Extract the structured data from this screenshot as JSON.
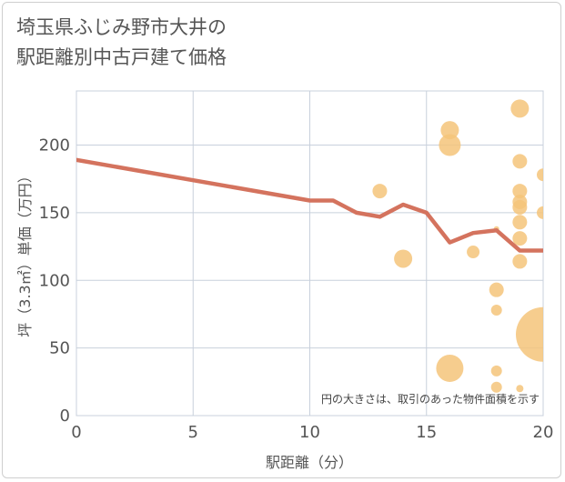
{
  "title_lines": [
    "埼玉県ふじみ野市大井の",
    "駅距離別中古戸建て価格"
  ],
  "chart_data": {
    "type": "scatter",
    "xlabel": "駅距離（分）",
    "ylabel": "坪（3.3㎡）単価（万円）",
    "xlim": [
      0,
      20
    ],
    "ylim": [
      0,
      240
    ],
    "x_ticks": [
      0,
      5,
      10,
      15,
      20
    ],
    "y_ticks": [
      0,
      50,
      100,
      150,
      200
    ],
    "grid": true,
    "note": "円の大きさは、取引のあった物件面積を示す",
    "colors": {
      "bubble": "#f5c47a",
      "line": "#d4735e",
      "grid": "#c8d0dc"
    },
    "trend_line": {
      "name": "",
      "x": [
        0,
        10,
        11,
        12,
        13,
        14,
        15,
        16,
        17,
        18,
        19,
        20
      ],
      "y": [
        189,
        159,
        159,
        150,
        147,
        156,
        150,
        128,
        135,
        137,
        122,
        122
      ]
    },
    "bubbles": [
      {
        "x": 13,
        "y": 166,
        "size": 8
      },
      {
        "x": 14,
        "y": 116,
        "size": 10
      },
      {
        "x": 16,
        "y": 211,
        "size": 10
      },
      {
        "x": 16,
        "y": 200,
        "size": 12
      },
      {
        "x": 16,
        "y": 35,
        "size": 15
      },
      {
        "x": 17,
        "y": 121,
        "size": 7
      },
      {
        "x": 18,
        "y": 138,
        "size": 3
      },
      {
        "x": 18,
        "y": 93,
        "size": 8
      },
      {
        "x": 18,
        "y": 78,
        "size": 6
      },
      {
        "x": 18,
        "y": 33,
        "size": 6
      },
      {
        "x": 18,
        "y": 21,
        "size": 6
      },
      {
        "x": 19,
        "y": 227,
        "size": 10
      },
      {
        "x": 19,
        "y": 188,
        "size": 8
      },
      {
        "x": 19,
        "y": 166,
        "size": 8
      },
      {
        "x": 19,
        "y": 158,
        "size": 8
      },
      {
        "x": 19,
        "y": 154,
        "size": 8
      },
      {
        "x": 19,
        "y": 143,
        "size": 8
      },
      {
        "x": 19,
        "y": 131,
        "size": 8
      },
      {
        "x": 19,
        "y": 114,
        "size": 8
      },
      {
        "x": 19,
        "y": 20,
        "size": 4
      },
      {
        "x": 20,
        "y": 178,
        "size": 7
      },
      {
        "x": 20,
        "y": 150,
        "size": 7
      },
      {
        "x": 20,
        "y": 60,
        "size": 30
      }
    ]
  }
}
